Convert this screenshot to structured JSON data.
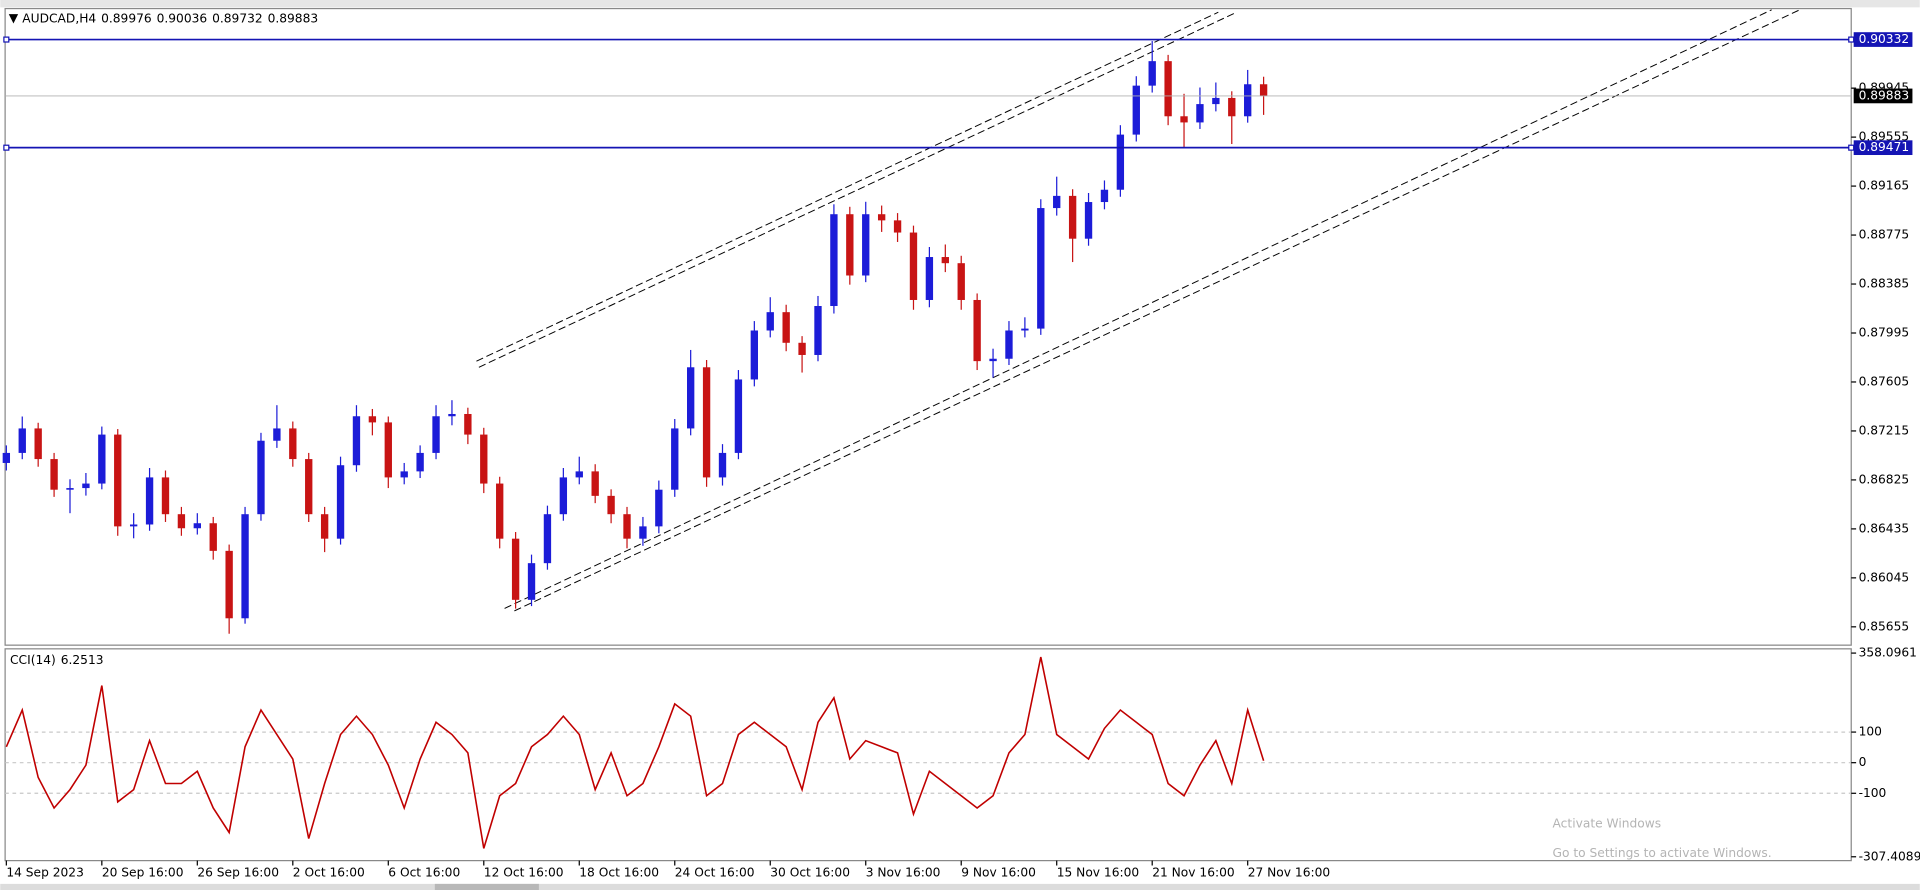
{
  "chart_data": [
    {
      "type": "candlestick",
      "title": "AUDCAD,H4",
      "up_color": "#1c1cd8",
      "down_color": "#c81414",
      "level_color": "#1414b4",
      "levels": [
        0.90332,
        0.89471
      ],
      "ylim": [
        0.85509,
        0.90569
      ],
      "yticks": [
        0.89945,
        0.89555,
        0.89165,
        0.88775,
        0.88385,
        0.87995,
        0.87605,
        0.87215,
        0.86825,
        0.86435,
        0.86045,
        0.85655
      ],
      "categories": [
        "14 Sep 2023",
        null,
        null,
        null,
        null,
        null,
        "20 Sep 16:00",
        null,
        null,
        null,
        null,
        null,
        "26 Sep 16:00",
        null,
        null,
        null,
        null,
        null,
        "2 Oct 16:00",
        null,
        null,
        null,
        null,
        null,
        "6 Oct 16:00",
        null,
        null,
        null,
        null,
        null,
        "12 Oct 16:00",
        null,
        null,
        null,
        null,
        null,
        "18 Oct 16:00",
        null,
        null,
        null,
        null,
        null,
        "24 Oct 16:00",
        null,
        null,
        null,
        null,
        null,
        "30 Oct 16:00",
        null,
        null,
        null,
        null,
        null,
        "3 Nov 16:00",
        null,
        null,
        null,
        null,
        null,
        "9 Nov 16:00",
        null,
        null,
        null,
        null,
        null,
        "15 Nov 16:00",
        null,
        null,
        null,
        null,
        null,
        "21 Nov 16:00",
        null,
        null,
        null,
        null,
        null,
        "27 Nov 16:00",
        null
      ],
      "ohlc": [
        [
          0.8696,
          0.871,
          0.869,
          0.8704
        ],
        [
          0.8704,
          0.8733,
          0.8699,
          0.87235
        ],
        [
          0.87235,
          0.8728,
          0.8693,
          0.86991
        ],
        [
          0.86991,
          0.8704,
          0.8669,
          0.86747
        ],
        [
          0.86747,
          0.8683,
          0.8656,
          0.8676
        ],
        [
          0.8676,
          0.8688,
          0.867,
          0.86796
        ],
        [
          0.86796,
          0.8725,
          0.8675,
          0.87186
        ],
        [
          0.87186,
          0.8723,
          0.8638,
          0.86455
        ],
        [
          0.86455,
          0.8656,
          0.8636,
          0.8647
        ],
        [
          0.8647,
          0.8692,
          0.8642,
          0.86845
        ],
        [
          0.86845,
          0.869,
          0.8649,
          0.86552
        ],
        [
          0.86552,
          0.8661,
          0.8638,
          0.8644
        ],
        [
          0.8644,
          0.8656,
          0.8639,
          0.8648
        ],
        [
          0.8648,
          0.8653,
          0.8619,
          0.8626
        ],
        [
          0.8626,
          0.8631,
          0.856,
          0.85723
        ],
        [
          0.85723,
          0.8661,
          0.8568,
          0.86552
        ],
        [
          0.86552,
          0.872,
          0.865,
          0.87137
        ],
        [
          0.87137,
          0.8742,
          0.8708,
          0.87235
        ],
        [
          0.87235,
          0.8729,
          0.8693,
          0.86991
        ],
        [
          0.86991,
          0.8704,
          0.8649,
          0.86552
        ],
        [
          0.86552,
          0.8661,
          0.8625,
          0.86357
        ],
        [
          0.86357,
          0.8701,
          0.8631,
          0.86942
        ],
        [
          0.86942,
          0.8742,
          0.8689,
          0.87332
        ],
        [
          0.87332,
          0.8739,
          0.8718,
          0.87283
        ],
        [
          0.87283,
          0.8733,
          0.8676,
          0.86845
        ],
        [
          0.86845,
          0.8696,
          0.8679,
          0.86893
        ],
        [
          0.86893,
          0.871,
          0.8684,
          0.8704
        ],
        [
          0.8704,
          0.8742,
          0.8699,
          0.87332
        ],
        [
          0.87332,
          0.8746,
          0.8726,
          0.8735
        ],
        [
          0.8735,
          0.874,
          0.8711,
          0.87186
        ],
        [
          0.87186,
          0.8724,
          0.8672,
          0.86796
        ],
        [
          0.86796,
          0.8685,
          0.8628,
          0.86357
        ],
        [
          0.86357,
          0.8641,
          0.858,
          0.8587
        ],
        [
          0.8587,
          0.8623,
          0.8582,
          0.86162
        ],
        [
          0.86162,
          0.8662,
          0.8611,
          0.86552
        ],
        [
          0.86552,
          0.8692,
          0.865,
          0.86845
        ],
        [
          0.86845,
          0.8701,
          0.8679,
          0.86893
        ],
        [
          0.86893,
          0.8695,
          0.8664,
          0.86698
        ],
        [
          0.86698,
          0.8675,
          0.8648,
          0.86552
        ],
        [
          0.86552,
          0.8661,
          0.8628,
          0.86357
        ],
        [
          0.86357,
          0.8653,
          0.863,
          0.86455
        ],
        [
          0.86455,
          0.8682,
          0.864,
          0.86747
        ],
        [
          0.86747,
          0.8731,
          0.8669,
          0.87235
        ],
        [
          0.87235,
          0.8786,
          0.8718,
          0.87722
        ],
        [
          0.87722,
          0.8778,
          0.8677,
          0.86845
        ],
        [
          0.86845,
          0.8711,
          0.8678,
          0.8704
        ],
        [
          0.8704,
          0.877,
          0.8699,
          0.87625
        ],
        [
          0.87625,
          0.8809,
          0.8757,
          0.88015
        ],
        [
          0.88015,
          0.8828,
          0.8796,
          0.88161
        ],
        [
          0.88161,
          0.8822,
          0.8785,
          0.87917
        ],
        [
          0.87917,
          0.8797,
          0.8768,
          0.8782
        ],
        [
          0.8782,
          0.8829,
          0.8777,
          0.8821
        ],
        [
          0.8821,
          0.8902,
          0.8815,
          0.88941
        ],
        [
          0.88941,
          0.89,
          0.8838,
          0.88453
        ],
        [
          0.88453,
          0.8904,
          0.884,
          0.88941
        ],
        [
          0.88941,
          0.8901,
          0.888,
          0.88892
        ],
        [
          0.88892,
          0.8895,
          0.8872,
          0.88795
        ],
        [
          0.88795,
          0.8885,
          0.8818,
          0.88258
        ],
        [
          0.88258,
          0.8868,
          0.882,
          0.886
        ],
        [
          0.886,
          0.887,
          0.8848,
          0.88551
        ],
        [
          0.88551,
          0.8861,
          0.8818,
          0.88258
        ],
        [
          0.88258,
          0.8831,
          0.877,
          0.87771
        ],
        [
          0.87771,
          0.8787,
          0.8764,
          0.8779
        ],
        [
          0.8779,
          0.8809,
          0.8774,
          0.88015
        ],
        [
          0.88015,
          0.8812,
          0.8796,
          0.8803
        ],
        [
          0.8803,
          0.8906,
          0.8798,
          0.8899
        ],
        [
          0.8899,
          0.8924,
          0.8893,
          0.89087
        ],
        [
          0.89087,
          0.8914,
          0.8856,
          0.88746
        ],
        [
          0.88746,
          0.8911,
          0.8869,
          0.89038
        ],
        [
          0.89038,
          0.8921,
          0.8898,
          0.89136
        ],
        [
          0.89136,
          0.8965,
          0.8908,
          0.89575
        ],
        [
          0.89575,
          0.9004,
          0.8952,
          0.89965
        ],
        [
          0.89965,
          0.9032,
          0.8991,
          0.9016
        ],
        [
          0.9016,
          0.9021,
          0.8965,
          0.89721
        ],
        [
          0.89721,
          0.899,
          0.8947,
          0.89672
        ],
        [
          0.89672,
          0.8995,
          0.8962,
          0.89818
        ],
        [
          0.89818,
          0.8999,
          0.8976,
          0.89867
        ],
        [
          0.89867,
          0.8992,
          0.895,
          0.89721
        ],
        [
          0.89721,
          0.9009,
          0.8967,
          0.89976
        ],
        [
          0.89976,
          0.90036,
          0.89732,
          0.89883
        ]
      ]
    },
    {
      "type": "line",
      "title": "CCI(14)",
      "color": "#c00000",
      "grid": true,
      "ylim": [
        -320,
        368
      ],
      "yticks": [
        358.0961,
        100,
        0,
        -100,
        -307.4089
      ],
      "values": [
        52,
        172,
        -48,
        -148,
        -88,
        -8,
        252,
        -128,
        -88,
        72,
        -68,
        -68,
        -28,
        -148,
        -228,
        52,
        172,
        92,
        12,
        -248,
        -68,
        92,
        152,
        92,
        -8,
        -148,
        12,
        132,
        92,
        32,
        -280,
        -108,
        -68,
        52,
        92,
        152,
        92,
        -88,
        32,
        -108,
        -68,
        52,
        192,
        152,
        -108,
        -68,
        92,
        132,
        92,
        52,
        -88,
        132,
        212,
        12,
        72,
        52,
        32,
        -168,
        -28,
        -68,
        -108,
        -148,
        -108,
        32,
        92,
        345,
        92,
        52,
        12,
        112,
        172,
        132,
        92,
        -68,
        -108,
        -8,
        72,
        -68,
        172,
        6.2513
      ]
    }
  ],
  "watermark": {
    "title": "Activate Windows",
    "subtitle": "Go to Settings to activate Windows."
  }
}
